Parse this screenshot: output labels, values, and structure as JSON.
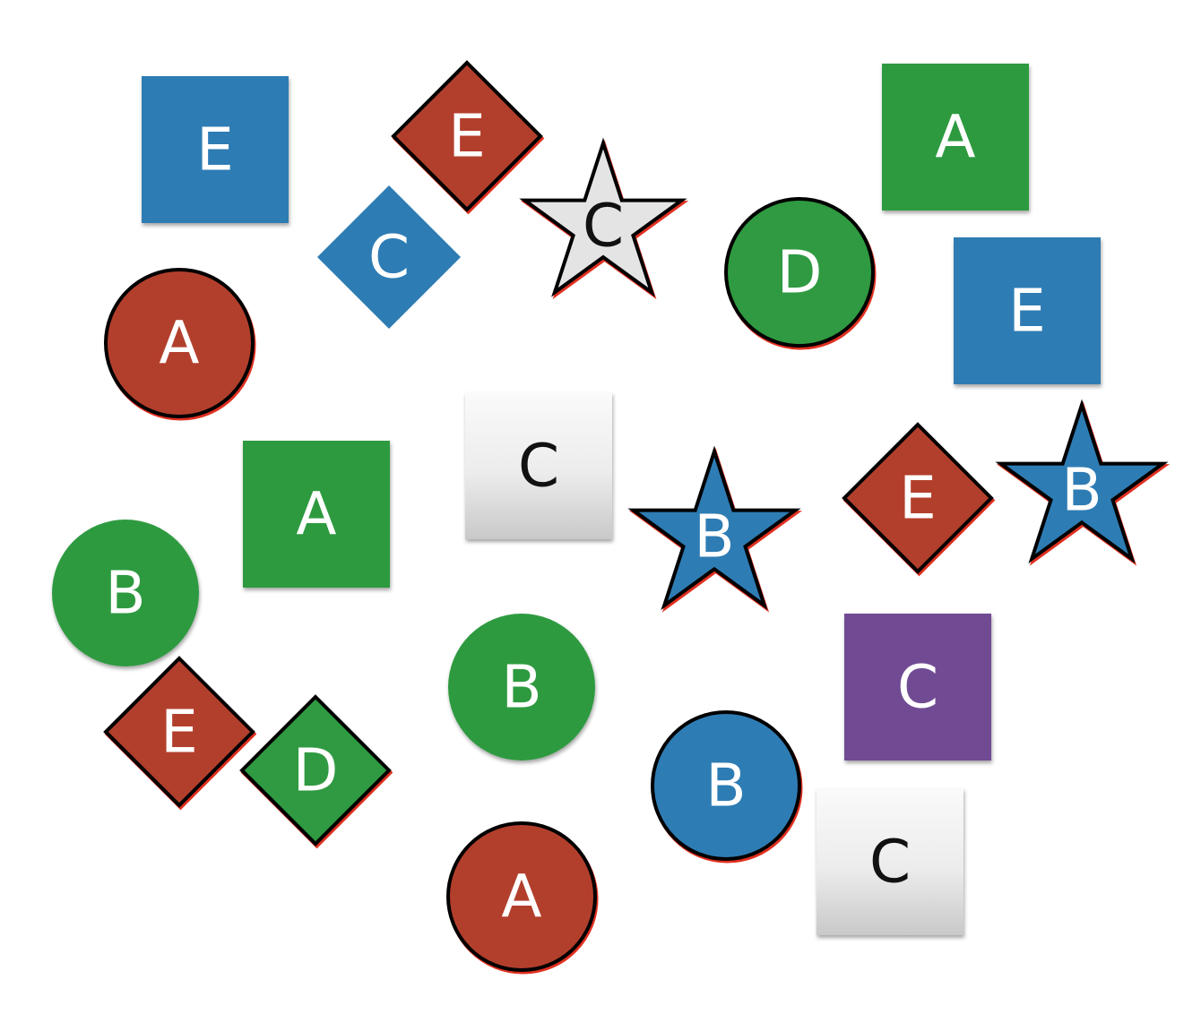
{
  "colors": {
    "blue": "#2e7cb4",
    "red": "#b23f2c",
    "green": "#2f9a41",
    "purple": "#6f4b94",
    "white": "#ffffff",
    "black": "#111111",
    "light_gray": "#e4e4e4"
  },
  "shapes": [
    {
      "kind": "square",
      "fill": "blue",
      "label": "E",
      "label_color": "white"
    },
    {
      "kind": "diamond",
      "fill": "red",
      "label": "E",
      "label_color": "white",
      "outlined": true
    },
    {
      "kind": "star",
      "fill": "light_gray",
      "label": "C",
      "label_color": "black",
      "outlined": true
    },
    {
      "kind": "square",
      "fill": "green",
      "label": "A",
      "label_color": "white"
    },
    {
      "kind": "diamond",
      "fill": "blue",
      "label": "C",
      "label_color": "white"
    },
    {
      "kind": "circle",
      "fill": "green",
      "label": "D",
      "label_color": "white",
      "outlined": true
    },
    {
      "kind": "square",
      "fill": "blue",
      "label": "E",
      "label_color": "white"
    },
    {
      "kind": "circle",
      "fill": "red",
      "label": "A",
      "label_color": "white",
      "outlined": true
    },
    {
      "kind": "square",
      "fill": "gradient_gray",
      "label": "C",
      "label_color": "black"
    },
    {
      "kind": "square",
      "fill": "green",
      "label": "A",
      "label_color": "white"
    },
    {
      "kind": "star",
      "fill": "blue",
      "label": "B",
      "label_color": "white",
      "outlined": true
    },
    {
      "kind": "diamond",
      "fill": "red",
      "label": "E",
      "label_color": "white",
      "outlined": true
    },
    {
      "kind": "star",
      "fill": "blue",
      "label": "B",
      "label_color": "white",
      "outlined": true
    },
    {
      "kind": "circle",
      "fill": "green",
      "label": "B",
      "label_color": "white"
    },
    {
      "kind": "square",
      "fill": "purple",
      "label": "C",
      "label_color": "white"
    },
    {
      "kind": "circle",
      "fill": "green",
      "label": "B",
      "label_color": "white"
    },
    {
      "kind": "diamond",
      "fill": "red",
      "label": "E",
      "label_color": "white",
      "outlined": true
    },
    {
      "kind": "diamond",
      "fill": "green",
      "label": "D",
      "label_color": "white",
      "outlined": true
    },
    {
      "kind": "circle",
      "fill": "blue",
      "label": "B",
      "label_color": "white",
      "outlined": true
    },
    {
      "kind": "square",
      "fill": "gradient_gray",
      "label": "C",
      "label_color": "black"
    },
    {
      "kind": "circle",
      "fill": "red",
      "label": "A",
      "label_color": "white",
      "outlined": true
    }
  ]
}
